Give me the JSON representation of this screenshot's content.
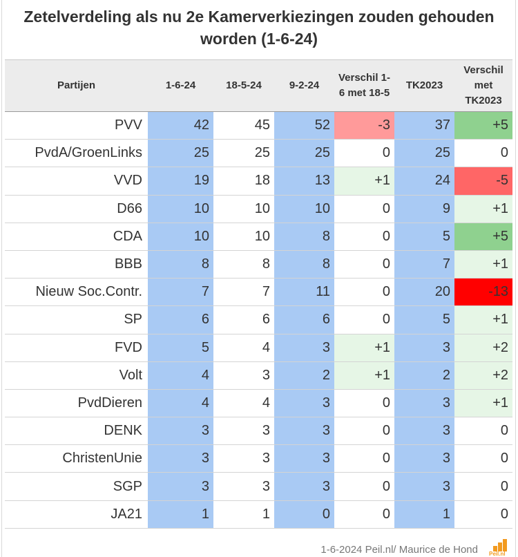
{
  "title": "Zetelverdeling als nu 2e Kamerverkiezingen zouden gehouden worden (1-6-24)",
  "footer": "1-6-2024 Peil.nl/ Maurice de Hond",
  "logo_text": "Peil.nl",
  "colors": {
    "column_blue": "#a9caf4",
    "header_bg": "#ececec",
    "diff_positive_small": "#e6f6e6",
    "diff_positive_large": "#8fd18f",
    "diff_negative_small": "#ff9a9a",
    "diff_negative_large": "#ff6666",
    "diff_negative_extreme": "#ff0000",
    "logo_orange": "#f29a1f"
  },
  "chart_data": {
    "type": "table",
    "title": "Zetelverdeling als nu 2e Kamerverkiezingen zouden gehouden worden (1-6-24)",
    "columns": [
      "Partijen",
      "1-6-24",
      "18-5-24",
      "9-2-24",
      "Verschil 1-6 met 18-5",
      "TK2023",
      "Verschil met TK2023"
    ],
    "rows": [
      {
        "party": "PVV",
        "p1": 42,
        "p2": 45,
        "p3": 52,
        "d1": "-3",
        "tk": 37,
        "d2": "+5"
      },
      {
        "party": "PvdA/GroenLinks",
        "p1": 25,
        "p2": 25,
        "p3": 25,
        "d1": "0",
        "tk": 25,
        "d2": "0"
      },
      {
        "party": "VVD",
        "p1": 19,
        "p2": 18,
        "p3": 13,
        "d1": "+1",
        "tk": 24,
        "d2": "-5"
      },
      {
        "party": "D66",
        "p1": 10,
        "p2": 10,
        "p3": 10,
        "d1": "0",
        "tk": 9,
        "d2": "+1"
      },
      {
        "party": "CDA",
        "p1": 10,
        "p2": 10,
        "p3": 8,
        "d1": "0",
        "tk": 5,
        "d2": "+5"
      },
      {
        "party": "BBB",
        "p1": 8,
        "p2": 8,
        "p3": 8,
        "d1": "0",
        "tk": 7,
        "d2": "+1"
      },
      {
        "party": "Nieuw Soc.Contr.",
        "p1": 7,
        "p2": 7,
        "p3": 11,
        "d1": "0",
        "tk": 20,
        "d2": "-13"
      },
      {
        "party": "SP",
        "p1": 6,
        "p2": 6,
        "p3": 6,
        "d1": "0",
        "tk": 5,
        "d2": "+1"
      },
      {
        "party": "FVD",
        "p1": 5,
        "p2": 4,
        "p3": 3,
        "d1": "+1",
        "tk": 3,
        "d2": "+2"
      },
      {
        "party": "Volt",
        "p1": 4,
        "p2": 3,
        "p3": 2,
        "d1": "+1",
        "tk": 2,
        "d2": "+2"
      },
      {
        "party": "PvdDieren",
        "p1": 4,
        "p2": 4,
        "p3": 3,
        "d1": "0",
        "tk": 3,
        "d2": "+1"
      },
      {
        "party": "DENK",
        "p1": 3,
        "p2": 3,
        "p3": 3,
        "d1": "0",
        "tk": 3,
        "d2": "0"
      },
      {
        "party": "ChristenUnie",
        "p1": 3,
        "p2": 3,
        "p3": 3,
        "d1": "0",
        "tk": 3,
        "d2": "0"
      },
      {
        "party": "SGP",
        "p1": 3,
        "p2": 3,
        "p3": 3,
        "d1": "0",
        "tk": 3,
        "d2": "0"
      },
      {
        "party": "JA21",
        "p1": 1,
        "p2": 1,
        "p3": 0,
        "d1": "0",
        "tk": 1,
        "d2": "0"
      }
    ]
  }
}
